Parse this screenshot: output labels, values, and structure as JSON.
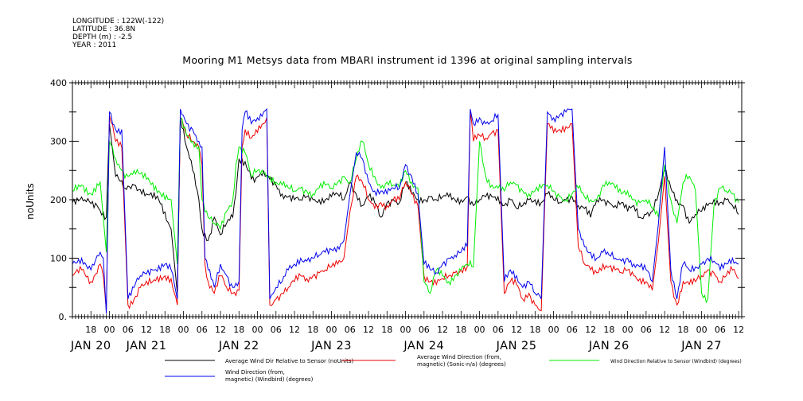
{
  "meta": {
    "longitude": "LONGITUDE : 122W(-122)",
    "latitude": "LATITUDE : 36.8N",
    "depth": "DEPTH (m) : -2.5",
    "year": "YEAR : 2011"
  },
  "chart_data": {
    "type": "line",
    "title": "Mooring M1 Metsys data from MBARI instrument id 1396 at original sampling intervals",
    "xlabel": "",
    "ylabel": "noUnits",
    "ylim": [
      0,
      400
    ],
    "yticks": [
      0,
      100,
      200,
      300,
      400
    ],
    "ytick_labels": [
      "0.",
      "100",
      "200",
      "300",
      "400"
    ],
    "xlim": [
      -12,
      205
    ],
    "hour_ticks": [
      {
        "h": -6,
        "label": "18"
      },
      {
        "h": 0,
        "label": "00"
      },
      {
        "h": 6,
        "label": "06"
      },
      {
        "h": 12,
        "label": "12"
      },
      {
        "h": 18,
        "label": "18"
      },
      {
        "h": 24,
        "label": "00"
      },
      {
        "h": 30,
        "label": "06"
      },
      {
        "h": 36,
        "label": "12"
      },
      {
        "h": 42,
        "label": "18"
      },
      {
        "h": 48,
        "label": "00"
      },
      {
        "h": 54,
        "label": "06"
      },
      {
        "h": 60,
        "label": "12"
      },
      {
        "h": 66,
        "label": "18"
      },
      {
        "h": 72,
        "label": "00"
      },
      {
        "h": 78,
        "label": "06"
      },
      {
        "h": 84,
        "label": "12"
      },
      {
        "h": 90,
        "label": "18"
      },
      {
        "h": 96,
        "label": "00"
      },
      {
        "h": 102,
        "label": "06"
      },
      {
        "h": 108,
        "label": "12"
      },
      {
        "h": 114,
        "label": "18"
      },
      {
        "h": 120,
        "label": "00"
      },
      {
        "h": 126,
        "label": "06"
      },
      {
        "h": 132,
        "label": "12"
      },
      {
        "h": 138,
        "label": "18"
      },
      {
        "h": 144,
        "label": "00"
      },
      {
        "h": 150,
        "label": "06"
      },
      {
        "h": 156,
        "label": "12"
      },
      {
        "h": 162,
        "label": "18"
      },
      {
        "h": 168,
        "label": "00"
      },
      {
        "h": 174,
        "label": "06"
      },
      {
        "h": 180,
        "label": "12"
      },
      {
        "h": 186,
        "label": "18"
      },
      {
        "h": 192,
        "label": "00"
      },
      {
        "h": 198,
        "label": "06"
      },
      {
        "h": 204,
        "label": "12"
      }
    ],
    "day_labels": [
      {
        "h": -6,
        "label": "JAN 20"
      },
      {
        "h": 12,
        "label": "JAN 21"
      },
      {
        "h": 42,
        "label": "JAN 22"
      },
      {
        "h": 72,
        "label": "JAN 23"
      },
      {
        "h": 102,
        "label": "JAN 24"
      },
      {
        "h": 132,
        "label": "JAN 25"
      },
      {
        "h": 162,
        "label": "JAN 26"
      },
      {
        "h": 192,
        "label": "JAN 27"
      }
    ],
    "series": [
      {
        "name": "Average Wind Dir Relative to Sensor (noUnits)",
        "color": "#000000",
        "x": [
          -12,
          -8,
          -4,
          -1,
          0,
          2,
          5,
          8,
          12,
          16,
          20,
          22,
          23,
          25,
          27,
          29,
          30,
          32,
          34,
          36,
          38,
          40,
          41,
          42,
          44,
          47,
          49,
          52,
          54,
          56,
          58,
          60,
          62,
          64,
          66,
          68,
          70,
          72,
          74,
          76,
          78,
          80,
          82,
          84,
          86,
          88,
          90,
          92,
          94,
          96,
          98,
          100,
          102,
          104,
          106,
          108,
          110,
          112,
          114,
          116,
          118,
          120,
          122,
          124,
          126,
          128,
          130,
          132,
          134,
          136,
          138,
          140,
          142,
          144,
          146,
          148,
          150,
          152,
          154,
          156,
          158,
          160,
          162,
          164,
          166,
          168,
          170,
          172,
          174,
          176,
          178,
          180,
          182,
          184,
          186,
          188,
          190,
          192,
          194,
          196,
          198,
          200,
          202,
          204
        ],
        "y": [
          195,
          200,
          190,
          170,
          330,
          240,
          220,
          225,
          210,
          200,
          150,
          40,
          340,
          290,
          250,
          200,
          150,
          130,
          170,
          140,
          160,
          170,
          210,
          270,
          265,
          230,
          245,
          235,
          225,
          210,
          205,
          200,
          200,
          205,
          200,
          200,
          200,
          205,
          210,
          200,
          230,
          210,
          190,
          205,
          195,
          170,
          195,
          200,
          195,
          230,
          210,
          200,
          200,
          205,
          200,
          205,
          205,
          200,
          200,
          205,
          190,
          200,
          205,
          205,
          205,
          190,
          200,
          185,
          190,
          200,
          200,
          195,
          210,
          200,
          195,
          200,
          205,
          190,
          185,
          170,
          200,
          200,
          195,
          190,
          195,
          180,
          190,
          170,
          175,
          180,
          210,
          250,
          220,
          200,
          190,
          160,
          175,
          180,
          190,
          200,
          195,
          200,
          190,
          175
        ]
      },
      {
        "name": "Average Wind Direction (from, magnetic) (Sonic-n/a) (degrees)",
        "color": "#ee0000",
        "x": [
          -12,
          -9,
          -6,
          -3,
          -2,
          -1,
          0,
          2,
          4,
          6,
          8,
          10,
          14,
          18,
          20,
          22,
          23,
          25,
          27,
          29,
          30,
          31,
          32,
          34,
          36,
          38,
          40,
          42,
          43,
          44,
          46,
          48,
          50,
          51,
          52,
          54,
          56,
          58,
          60,
          62,
          64,
          66,
          68,
          70,
          72,
          74,
          76,
          78,
          80,
          82,
          84,
          86,
          88,
          90,
          92,
          94,
          96,
          98,
          100,
          102,
          104,
          106,
          108,
          110,
          112,
          114,
          116,
          117,
          118,
          120,
          122,
          124,
          126,
          128,
          130,
          132,
          134,
          136,
          138,
          140,
          142,
          144,
          146,
          148,
          150,
          152,
          154,
          156,
          158,
          160,
          162,
          164,
          166,
          168,
          170,
          172,
          174,
          176,
          178,
          180,
          182,
          184,
          186,
          188,
          190,
          192,
          194,
          196,
          198,
          200,
          202,
          204
        ],
        "y": [
          70,
          80,
          60,
          90,
          70,
          10,
          345,
          300,
          290,
          20,
          30,
          50,
          60,
          70,
          65,
          20,
          340,
          310,
          300,
          290,
          260,
          90,
          60,
          40,
          70,
          50,
          40,
          45,
          290,
          320,
          305,
          315,
          330,
          340,
          20,
          30,
          40,
          50,
          60,
          70,
          65,
          70,
          75,
          80,
          85,
          90,
          100,
          180,
          240,
          230,
          200,
          185,
          195,
          190,
          200,
          200,
          230,
          210,
          190,
          70,
          60,
          55,
          65,
          70,
          75,
          80,
          85,
          350,
          300,
          310,
          305,
          315,
          320,
          40,
          60,
          55,
          30,
          40,
          20,
          10,
          330,
          315,
          320,
          325,
          330,
          120,
          90,
          80,
          75,
          90,
          85,
          80,
          75,
          80,
          70,
          65,
          60,
          45,
          130,
          240,
          60,
          20,
          60,
          55,
          60,
          70,
          80,
          75,
          60,
          70,
          80,
          65
        ]
      },
      {
        "name": "Wind Direction Relative to Sensor (Windbird) (degrees)",
        "color": "#00ee00",
        "x": [
          -12,
          -9,
          -6,
          -3,
          -1,
          0,
          2,
          4,
          6,
          8,
          12,
          16,
          20,
          22,
          23,
          25,
          27,
          29,
          30,
          32,
          34,
          36,
          38,
          40,
          41,
          42,
          44,
          46,
          48,
          50,
          52,
          54,
          56,
          58,
          60,
          62,
          64,
          66,
          68,
          70,
          72,
          74,
          76,
          78,
          80,
          82,
          84,
          86,
          88,
          90,
          92,
          94,
          96,
          98,
          100,
          102,
          104,
          106,
          108,
          110,
          112,
          114,
          116,
          118,
          120,
          122,
          124,
          126,
          128,
          130,
          132,
          134,
          136,
          138,
          140,
          142,
          144,
          146,
          148,
          150,
          152,
          154,
          156,
          158,
          160,
          162,
          164,
          166,
          168,
          170,
          172,
          174,
          176,
          178,
          180,
          182,
          184,
          186,
          188,
          190,
          192,
          194,
          196,
          198,
          200,
          202,
          204
        ],
        "y": [
          215,
          225,
          210,
          230,
          110,
          300,
          270,
          250,
          240,
          250,
          235,
          215,
          200,
          90,
          340,
          310,
          300,
          290,
          200,
          170,
          160,
          150,
          180,
          200,
          260,
          290,
          280,
          240,
          250,
          245,
          240,
          230,
          225,
          220,
          215,
          220,
          215,
          210,
          220,
          225,
          220,
          230,
          240,
          230,
          270,
          300,
          260,
          240,
          220,
          230,
          225,
          220,
          250,
          230,
          220,
          60,
          40,
          80,
          70,
          60,
          70,
          80,
          90,
          85,
          300,
          240,
          225,
          220,
          215,
          230,
          225,
          215,
          210,
          215,
          220,
          225,
          215,
          205,
          200,
          210,
          220,
          205,
          200,
          200,
          225,
          230,
          220,
          210,
          215,
          200,
          195,
          200,
          185,
          170,
          260,
          200,
          160,
          230,
          240,
          215,
          40,
          30,
          190,
          220,
          215,
          210,
          195
        ]
      },
      {
        "name": "Wind Direction (from, magnetic) (Windbird) (degrees)",
        "color": "#0000ee",
        "x": [
          -12,
          -9,
          -6,
          -3,
          -2,
          -1,
          0,
          2,
          4,
          6,
          8,
          10,
          14,
          18,
          20,
          22,
          23,
          25,
          27,
          29,
          30,
          31,
          32,
          34,
          36,
          38,
          40,
          42,
          43,
          44,
          46,
          48,
          50,
          51,
          52,
          54,
          56,
          58,
          60,
          62,
          64,
          66,
          68,
          70,
          72,
          74,
          76,
          78,
          80,
          82,
          84,
          86,
          88,
          90,
          92,
          94,
          96,
          98,
          100,
          102,
          104,
          106,
          108,
          110,
          112,
          114,
          116,
          117,
          118,
          120,
          122,
          124,
          126,
          128,
          130,
          132,
          134,
          136,
          138,
          140,
          142,
          144,
          146,
          148,
          150,
          152,
          154,
          156,
          158,
          160,
          162,
          164,
          166,
          168,
          170,
          172,
          174,
          176,
          178,
          180,
          182,
          184,
          186,
          188,
          190,
          192,
          194,
          196,
          198,
          200,
          202,
          204
        ],
        "y": [
          90,
          100,
          80,
          110,
          100,
          5,
          350,
          320,
          320,
          30,
          50,
          70,
          80,
          90,
          80,
          30,
          355,
          330,
          320,
          300,
          290,
          100,
          80,
          50,
          90,
          70,
          50,
          60,
          320,
          350,
          330,
          340,
          350,
          355,
          30,
          50,
          60,
          80,
          90,
          100,
          95,
          100,
          105,
          110,
          115,
          120,
          130,
          210,
          280,
          270,
          230,
          215,
          215,
          210,
          220,
          220,
          260,
          240,
          210,
          90,
          80,
          75,
          90,
          100,
          105,
          110,
          120,
          355,
          330,
          340,
          330,
          335,
          345,
          60,
          80,
          70,
          50,
          60,
          40,
          30,
          350,
          340,
          345,
          350,
          355,
          150,
          120,
          110,
          100,
          110,
          105,
          100,
          95,
          100,
          90,
          85,
          80,
          60,
          160,
          290,
          80,
          30,
          90,
          80,
          85,
          90,
          100,
          95,
          80,
          90,
          100,
          90
        ]
      }
    ]
  }
}
